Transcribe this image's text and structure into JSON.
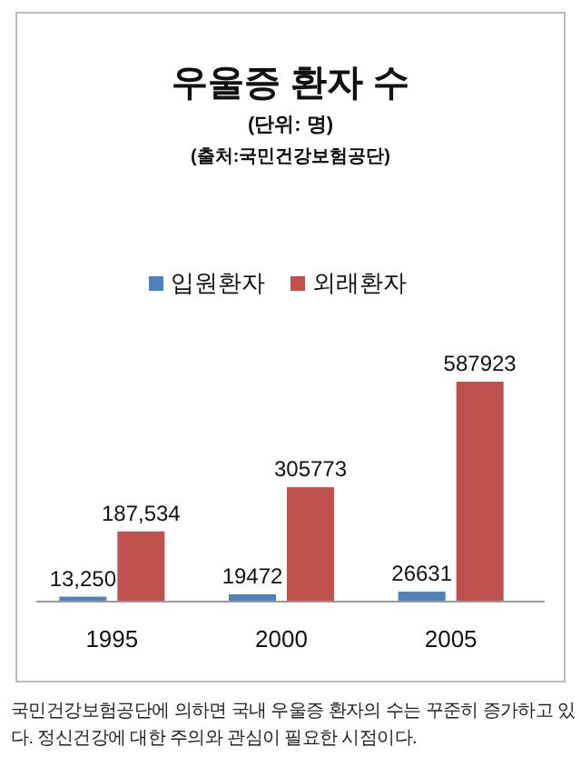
{
  "chart_data": {
    "type": "bar",
    "title": "우울증 환자 수",
    "subtitle": "(단위: 명)",
    "categories": [
      "1995",
      "2000",
      "2005"
    ],
    "series": [
      {
        "name": "입원환자",
        "color": "#4f81bd",
        "values": [
          13250,
          19472,
          26631
        ],
        "value_labels": [
          "13,250",
          "19472",
          "26631"
        ]
      },
      {
        "name": "외래환자",
        "color": "#c0504d",
        "values": [
          187534,
          305773,
          587923
        ],
        "value_labels": [
          "187,534",
          "305773",
          "587923"
        ]
      }
    ],
    "legend": "top",
    "grid": false,
    "annotations": [
      "(출처:국민건강보험공단)",
      "국민건강보험공단에 의하면 국내 우울증 환자의 수는 꾸준히 증가하고 있다. 정신건강에 대한 주의와 관심이 필요한 시점이다."
    ]
  }
}
